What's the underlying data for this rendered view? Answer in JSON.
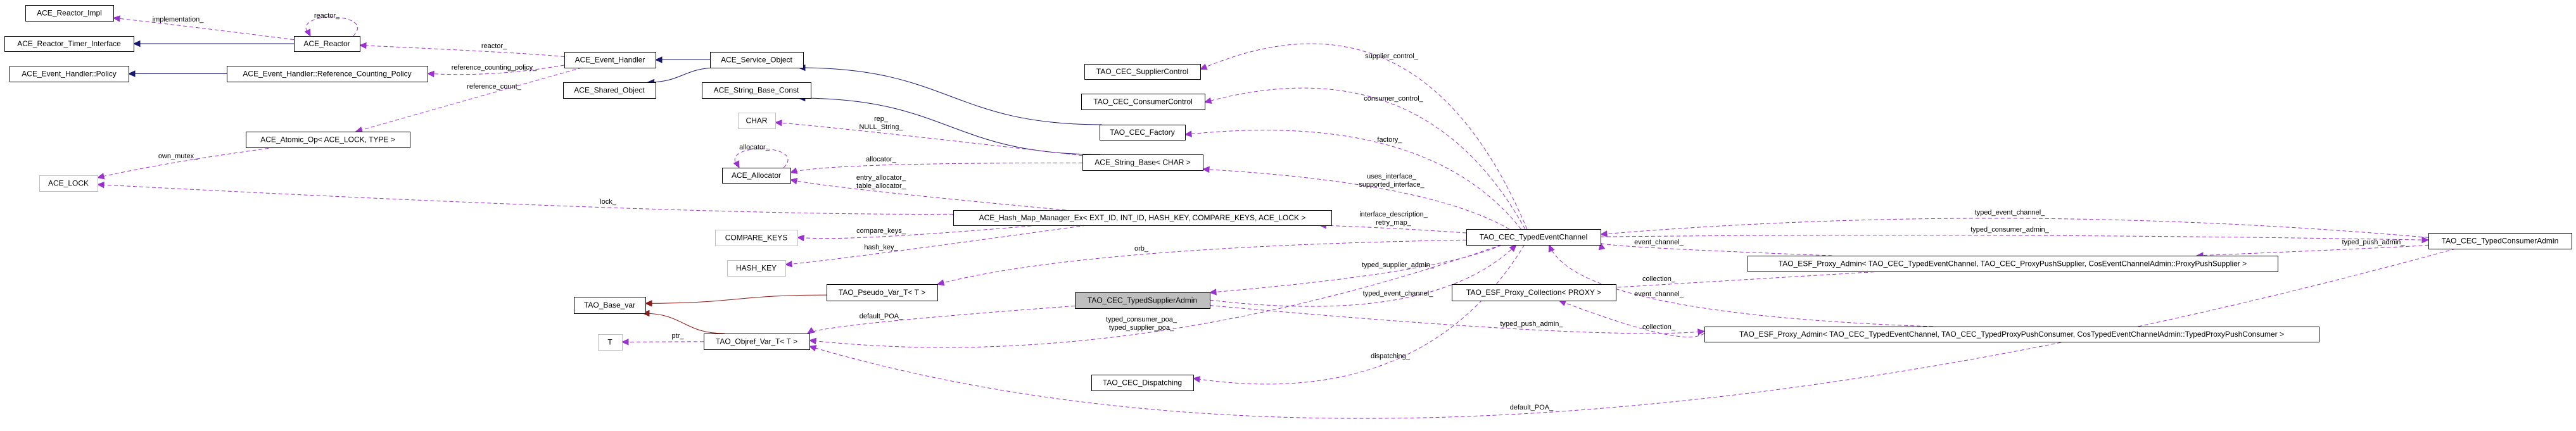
{
  "colors": {
    "inheritance": "#191970",
    "template": "#8b1a1a",
    "usage": "#9a32cd",
    "focus_fill": "#bfbfbf",
    "undocumented_border": "#bfbfbf",
    "border": "#000000"
  },
  "nodes": [
    {
      "id": "reactor_impl",
      "label": "ACE_Reactor_Impl",
      "style": "documented"
    },
    {
      "id": "reactor_timer",
      "label": "ACE_Reactor_Timer_Interface",
      "style": "documented"
    },
    {
      "id": "reactor",
      "label": "ACE_Reactor",
      "style": "documented"
    },
    {
      "id": "eh_policy",
      "label": "ACE_Event_Handler::Policy",
      "style": "documented"
    },
    {
      "id": "ref_policy",
      "label": "ACE_Event_Handler::Reference_Counting_Policy",
      "style": "documented"
    },
    {
      "id": "event_handler",
      "label": "ACE_Event_Handler",
      "style": "documented"
    },
    {
      "id": "shared_object",
      "label": "ACE_Shared_Object",
      "style": "documented"
    },
    {
      "id": "service_object",
      "label": "ACE_Service_Object",
      "style": "documented"
    },
    {
      "id": "string_base_const",
      "label": "ACE_String_Base_Const",
      "style": "documented"
    },
    {
      "id": "atomic_op",
      "label": "ACE_Atomic_Op< ACE_LOCK, TYPE >",
      "style": "documented"
    },
    {
      "id": "ace_lock",
      "label": "ACE_LOCK",
      "style": "undocumented"
    },
    {
      "id": "char",
      "label": "CHAR",
      "style": "undocumented"
    },
    {
      "id": "allocator",
      "label": "ACE_Allocator",
      "style": "documented"
    },
    {
      "id": "supplier_control",
      "label": "TAO_CEC_SupplierControl",
      "style": "documented"
    },
    {
      "id": "consumer_control",
      "label": "TAO_CEC_ConsumerControl",
      "style": "documented"
    },
    {
      "id": "factory",
      "label": "TAO_CEC_Factory",
      "style": "documented"
    },
    {
      "id": "string_base",
      "label": "ACE_String_Base< CHAR >",
      "style": "documented"
    },
    {
      "id": "hash_map",
      "label": "ACE_Hash_Map_Manager_Ex< EXT_ID, INT_ID, HASH_KEY, COMPARE_KEYS, ACE_LOCK >",
      "style": "documented"
    },
    {
      "id": "compare_keys",
      "label": "COMPARE_KEYS",
      "style": "undocumented"
    },
    {
      "id": "hash_key",
      "label": "HASH_KEY",
      "style": "undocumented"
    },
    {
      "id": "base_var",
      "label": "TAO_Base_var",
      "style": "documented"
    },
    {
      "id": "pseudo_var",
      "label": "TAO_Pseudo_Var_T< T >",
      "style": "documented"
    },
    {
      "id": "t",
      "label": "T",
      "style": "undocumented"
    },
    {
      "id": "objref_var",
      "label": "TAO_Objref_Var_T< T >",
      "style": "documented"
    },
    {
      "id": "typed_supplier_admin",
      "label": "TAO_CEC_TypedSupplierAdmin",
      "style": "focus"
    },
    {
      "id": "dispatching",
      "label": "TAO_CEC_Dispatching",
      "style": "documented"
    },
    {
      "id": "typed_event_channel",
      "label": "TAO_CEC_TypedEventChannel",
      "style": "documented"
    },
    {
      "id": "proxy_collection",
      "label": "TAO_ESF_Proxy_Collection< PROXY >",
      "style": "documented"
    },
    {
      "id": "proxy_admin_supplier",
      "label": "TAO_ESF_Proxy_Admin< TAO_CEC_TypedEventChannel, TAO_CEC_ProxyPushSupplier, CosEventChannelAdmin::ProxyPushSupplier >",
      "style": "documented"
    },
    {
      "id": "proxy_admin_consumer",
      "label": "TAO_ESF_Proxy_Admin< TAO_CEC_TypedEventChannel, TAO_CEC_TypedProxyPushConsumer, CosTypedEventChannelAdmin::TypedProxyPushConsumer >",
      "style": "documented"
    },
    {
      "id": "typed_consumer_admin",
      "label": "TAO_CEC_TypedConsumerAdmin",
      "style": "documented"
    }
  ],
  "edges": [
    {
      "from": "reactor",
      "to": "reactor_timer",
      "kind": "inheritance",
      "label": []
    },
    {
      "from": "ref_policy",
      "to": "eh_policy",
      "kind": "inheritance",
      "label": []
    },
    {
      "from": "service_object",
      "to": "event_handler",
      "kind": "inheritance",
      "label": []
    },
    {
      "from": "service_object",
      "to": "shared_object",
      "kind": "inheritance",
      "label": []
    },
    {
      "from": "factory",
      "to": "service_object",
      "kind": "inheritance",
      "label": []
    },
    {
      "from": "string_base",
      "to": "string_base_const",
      "kind": "inheritance",
      "label": []
    },
    {
      "from": "pseudo_var",
      "to": "base_var",
      "kind": "template",
      "label": []
    },
    {
      "from": "objref_var",
      "to": "base_var",
      "kind": "template",
      "label": []
    },
    {
      "from": "reactor",
      "to": "reactor_impl",
      "kind": "usage",
      "label": [
        "implementation_"
      ]
    },
    {
      "from": "reactor",
      "to": "reactor",
      "kind": "usage",
      "label": [
        "reactor_"
      ]
    },
    {
      "from": "event_handler",
      "to": "reactor",
      "kind": "usage",
      "label": [
        "reactor_"
      ]
    },
    {
      "from": "event_handler",
      "to": "ref_policy",
      "kind": "usage",
      "label": [
        "reference_counting_policy_"
      ]
    },
    {
      "from": "event_handler",
      "to": "atomic_op",
      "kind": "usage",
      "label": [
        "reference_count_"
      ]
    },
    {
      "from": "atomic_op",
      "to": "ace_lock",
      "kind": "usage",
      "label": [
        "own_mutex_"
      ]
    },
    {
      "from": "hash_map",
      "to": "ace_lock",
      "kind": "usage",
      "label": [
        "lock_"
      ]
    },
    {
      "from": "string_base",
      "to": "char",
      "kind": "usage",
      "label": [
        "rep_",
        "NULL_String_"
      ]
    },
    {
      "from": "allocator",
      "to": "allocator",
      "kind": "usage",
      "label": [
        "allocator_"
      ]
    },
    {
      "from": "string_base",
      "to": "allocator",
      "kind": "usage",
      "label": [
        "allocator_"
      ]
    },
    {
      "from": "hash_map",
      "to": "allocator",
      "kind": "usage",
      "label": [
        "entry_allocator_",
        "table_allocator_"
      ]
    },
    {
      "from": "hash_map",
      "to": "compare_keys",
      "kind": "usage",
      "label": [
        "compare_keys_"
      ]
    },
    {
      "from": "hash_map",
      "to": "hash_key",
      "kind": "usage",
      "label": [
        "hash_key_"
      ]
    },
    {
      "from": "typed_event_channel",
      "to": "supplier_control",
      "kind": "usage",
      "label": [
        "supplier_control_"
      ]
    },
    {
      "from": "typed_event_channel",
      "to": "consumer_control",
      "kind": "usage",
      "label": [
        "consumer_control_"
      ]
    },
    {
      "from": "typed_event_channel",
      "to": "factory",
      "kind": "usage",
      "label": [
        "factory_"
      ]
    },
    {
      "from": "typed_event_channel",
      "to": "string_base",
      "kind": "usage",
      "label": [
        "uses_interface_",
        "supported_interface_"
      ]
    },
    {
      "from": "typed_event_channel",
      "to": "hash_map",
      "kind": "usage",
      "label": [
        "interface_description_",
        "retry_map_"
      ]
    },
    {
      "from": "typed_event_channel",
      "to": "pseudo_var",
      "kind": "usage",
      "label": [
        "orb_"
      ]
    },
    {
      "from": "typed_event_channel",
      "to": "typed_supplier_admin",
      "kind": "usage",
      "label": [
        "typed_supplier_admin_"
      ]
    },
    {
      "from": "typed_supplier_admin",
      "to": "typed_event_channel",
      "kind": "usage",
      "label": [
        "typed_event_channel_"
      ]
    },
    {
      "from": "typed_event_channel",
      "to": "objref_var",
      "kind": "usage",
      "label": [
        "typed_consumer_poa_",
        "typed_supplier_poa_"
      ]
    },
    {
      "from": "typed_supplier_admin",
      "to": "objref_var",
      "kind": "usage",
      "label": [
        "default_POA_"
      ]
    },
    {
      "from": "typed_event_channel",
      "to": "dispatching",
      "kind": "usage",
      "label": [
        "dispatching_"
      ]
    },
    {
      "from": "typed_consumer_admin",
      "to": "objref_var",
      "kind": "usage",
      "label": [
        "default_POA_"
      ]
    },
    {
      "from": "objref_var",
      "to": "t",
      "kind": "usage",
      "label": [
        "ptr_"
      ]
    },
    {
      "from": "typed_consumer_admin",
      "to": "typed_event_channel",
      "kind": "usage",
      "label": [
        "typed_event_channel_"
      ]
    },
    {
      "from": "typed_event_channel",
      "to": "typed_consumer_admin",
      "kind": "usage",
      "label": [
        "typed_consumer_admin_"
      ]
    },
    {
      "from": "proxy_admin_supplier",
      "to": "typed_event_channel",
      "kind": "usage",
      "label": [
        "event_channel_"
      ]
    },
    {
      "from": "typed_consumer_admin",
      "to": "proxy_admin_supplier",
      "kind": "usage",
      "label": [
        "typed_push_admin_"
      ]
    },
    {
      "from": "proxy_admin_supplier",
      "to": "proxy_collection",
      "kind": "usage",
      "label": [
        "collection_"
      ]
    },
    {
      "from": "proxy_admin_consumer",
      "to": "typed_event_channel",
      "kind": "usage",
      "label": [
        "event_channel_"
      ]
    },
    {
      "from": "proxy_admin_consumer",
      "to": "proxy_collection",
      "kind": "usage",
      "label": [
        "collection_"
      ]
    },
    {
      "from": "typed_supplier_admin",
      "to": "proxy_admin_consumer",
      "kind": "usage",
      "label": [
        "typed_push_admin_"
      ]
    }
  ]
}
